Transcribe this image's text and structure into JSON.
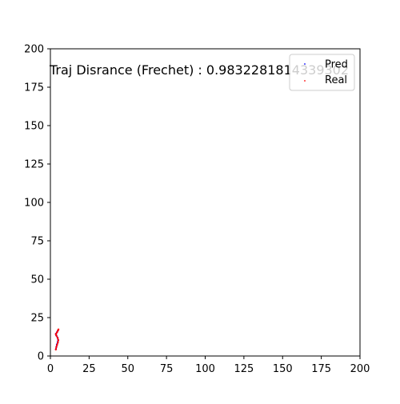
{
  "chart_data": {
    "type": "scatter",
    "xlim": [
      0,
      200
    ],
    "ylim": [
      0,
      200
    ],
    "xticks": [
      "0",
      "25",
      "50",
      "75",
      "100",
      "125",
      "150",
      "175",
      "200"
    ],
    "yticks": [
      "0",
      "25",
      "50",
      "75",
      "100",
      "125",
      "150",
      "175",
      "200"
    ],
    "grid": false,
    "legend_position": "top-right",
    "annotation": "Traj Disrance (Frechet) : 0.9832281814339302",
    "series": [
      {
        "name": "Pred",
        "color": "#0000ff",
        "marker": "dot",
        "points": [
          [
            3.6,
            4.5
          ],
          [
            3.9,
            6.0
          ],
          [
            4.2,
            7.5
          ],
          [
            4.7,
            9.0
          ],
          [
            5.0,
            10.5
          ],
          [
            4.6,
            12.0
          ],
          [
            3.8,
            13.5
          ],
          [
            3.6,
            14.5
          ],
          [
            4.3,
            15.5
          ],
          [
            4.8,
            16.5
          ]
        ]
      },
      {
        "name": "Real",
        "color": "#ff0000",
        "marker": "dot",
        "points": [
          [
            3.5,
            4.2
          ],
          [
            3.8,
            5.7
          ],
          [
            4.3,
            7.2
          ],
          [
            4.8,
            8.7
          ],
          [
            5.1,
            10.2
          ],
          [
            4.7,
            11.7
          ],
          [
            3.9,
            13.2
          ],
          [
            3.5,
            14.2
          ],
          [
            4.2,
            15.3
          ],
          [
            4.9,
            16.6
          ],
          [
            5.2,
            17.3
          ]
        ]
      }
    ]
  }
}
